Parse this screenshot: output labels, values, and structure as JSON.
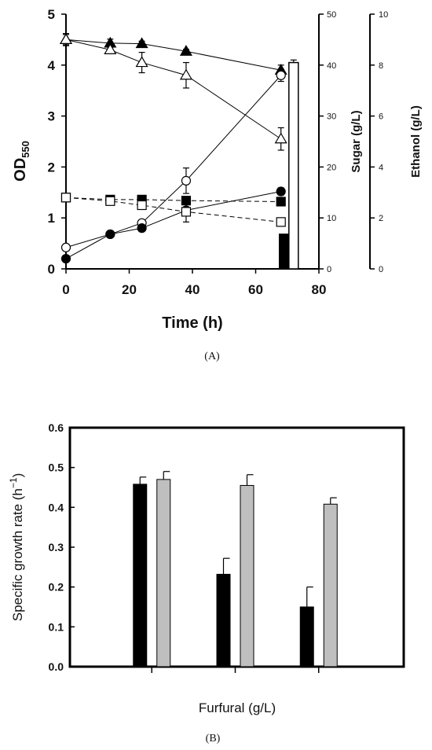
{
  "chart_data": [
    {
      "panel": "(A)",
      "type": "line",
      "xlabel": "Time (h)",
      "xlim": [
        0,
        80
      ],
      "xticks": [
        "0",
        "20",
        "40",
        "60",
        "80"
      ],
      "y_left": {
        "label_main": "OD",
        "label_sub": "550",
        "lim": [
          0,
          5
        ],
        "ticks": [
          "0",
          "1",
          "2",
          "3",
          "4",
          "5"
        ]
      },
      "y_sugar": {
        "label": "Sugar (g/L)",
        "lim": [
          0,
          50
        ],
        "ticks": [
          "0",
          "10",
          "20",
          "30",
          "40",
          "50"
        ]
      },
      "y_ethanol": {
        "label": "Ethanol (g/L)",
        "lim": [
          0,
          10
        ],
        "ticks": [
          "0",
          "2",
          "4",
          "6",
          "8",
          "10"
        ]
      },
      "series": [
        {
          "marker": "filled-triangle",
          "line": "solid",
          "axis": "left",
          "x": [
            0,
            14,
            24,
            38,
            68
          ],
          "y": [
            4.5,
            4.43,
            4.42,
            4.27,
            3.9
          ],
          "err": [
            0.1,
            0.08,
            0.05,
            0.04,
            0.1
          ]
        },
        {
          "marker": "open-triangle",
          "line": "solid",
          "axis": "left",
          "x": [
            0,
            14,
            24,
            38,
            68
          ],
          "y": [
            4.5,
            4.3,
            4.05,
            3.8,
            2.55
          ],
          "err": [
            0.12,
            0.07,
            0.2,
            0.25,
            0.22
          ]
        },
        {
          "marker": "open-circle",
          "line": "solid",
          "axis": "left",
          "x": [
            0,
            14,
            24,
            38,
            68
          ],
          "y": [
            0.42,
            0.68,
            0.9,
            1.73,
            3.8
          ],
          "err": [
            0.05,
            0.05,
            0.05,
            0.25,
            0.12
          ]
        },
        {
          "marker": "filled-circle",
          "line": "solid",
          "axis": "left",
          "x": [
            0,
            14,
            24,
            38,
            68
          ],
          "y": [
            0.2,
            0.68,
            0.8,
            1.15,
            1.52
          ],
          "err": [
            0.03,
            0.05,
            0.05,
            0.05,
            0.07
          ]
        },
        {
          "marker": "filled-square",
          "line": "dashed",
          "axis": "left",
          "x": [
            0,
            14,
            24,
            38,
            68
          ],
          "y": [
            1.4,
            1.36,
            1.36,
            1.34,
            1.32
          ],
          "err": [
            0.03,
            0.03,
            0.03,
            0.03,
            0.03
          ]
        },
        {
          "marker": "open-square",
          "line": "dashed",
          "axis": "left",
          "x": [
            0,
            14,
            24,
            38,
            68
          ],
          "y": [
            1.4,
            1.33,
            1.25,
            1.12,
            0.92
          ],
          "err": [
            0.03,
            0.05,
            0.05,
            0.2,
            0.05
          ]
        }
      ],
      "bars": [
        {
          "fill": "black",
          "x": 69,
          "value": 0.68,
          "axis": "left"
        },
        {
          "fill": "white",
          "x": 72,
          "value": 4.05,
          "axis": "left",
          "err": 0.05
        }
      ]
    },
    {
      "panel": "(B)",
      "type": "bar",
      "xlabel": "Furfural (g/L)",
      "ylabel": "Specific growth rate (h",
      "ylabel_sup": "−1",
      "ylabel_end": ")",
      "ylim": [
        0,
        0.6
      ],
      "yticks": [
        "0.0",
        "0.1",
        "0.2",
        "0.3",
        "0.4",
        "0.5",
        "0.6"
      ],
      "groups": 3,
      "series": [
        {
          "color": "#000000",
          "values": [
            0.458,
            0.232,
            0.15
          ],
          "err": [
            0.018,
            0.04,
            0.05
          ]
        },
        {
          "color": "#bfbfbf",
          "values": [
            0.47,
            0.455,
            0.408
          ],
          "err": [
            0.02,
            0.027,
            0.016
          ]
        }
      ]
    }
  ]
}
